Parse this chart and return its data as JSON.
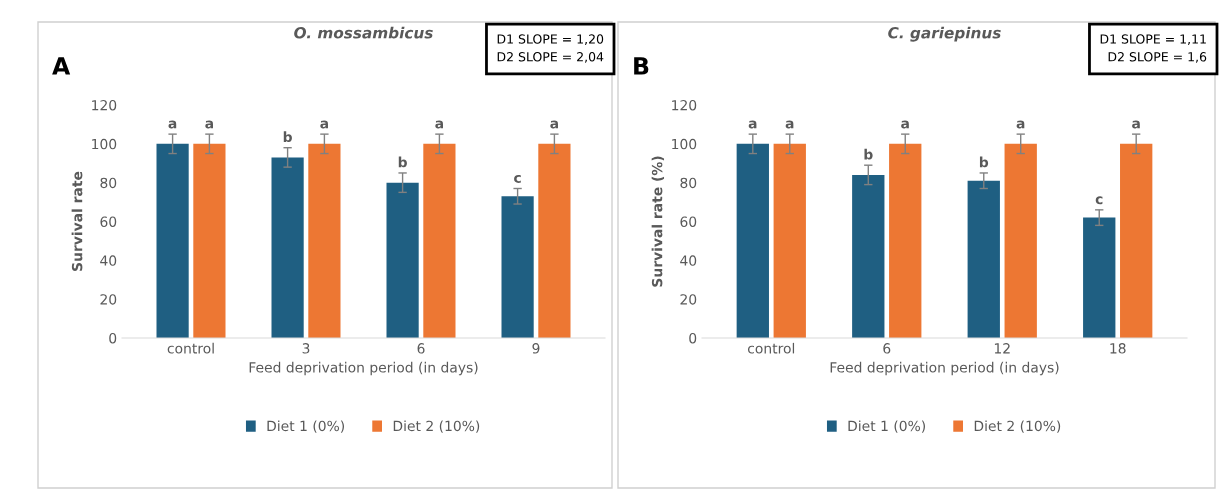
{
  "chart_data": [
    {
      "type": "bar",
      "title": "O. mossambicus",
      "xlabel": "Feed deprivation period (in days)",
      "ylabel": "Survival rate",
      "categories": [
        "control",
        "3",
        "6",
        "9"
      ],
      "ylim": [
        0,
        120
      ],
      "yticks": [
        0,
        20,
        40,
        60,
        80,
        100,
        120
      ],
      "grid": false,
      "legend": "bottom",
      "series": [
        {
          "name": "Diet 1 (0%)",
          "color": "#1f5f82",
          "values": [
            100,
            93,
            80,
            73
          ],
          "errors": [
            5,
            5,
            5,
            4
          ],
          "value_labels": [
            "a",
            "b",
            "b",
            "c"
          ]
        },
        {
          "name": "Diet 2 (10%)",
          "color": "#ed7733",
          "values": [
            100,
            100,
            100,
            100
          ],
          "errors": [
            5,
            5,
            5,
            5
          ],
          "value_labels": [
            "a",
            "a",
            "a",
            "a"
          ]
        }
      ],
      "annotations": [
        "A",
        "D1 SLOPE = 1,20\nD2 SLOPE = 2,04"
      ]
    },
    {
      "type": "bar",
      "title": "C. gariepinus",
      "xlabel": "Feed deprivation period (in days)",
      "ylabel": "Survival rate (%)",
      "categories": [
        "control",
        "6",
        "12",
        "18"
      ],
      "ylim": [
        0,
        120
      ],
      "yticks": [
        0,
        20,
        40,
        60,
        80,
        100,
        120
      ],
      "grid": false,
      "legend": "bottom",
      "series": [
        {
          "name": "Diet 1 (0%)",
          "color": "#1f5f82",
          "values": [
            100,
            84,
            81,
            62
          ],
          "errors": [
            5,
            5,
            4,
            4
          ],
          "value_labels": [
            "a",
            "b",
            "b",
            "c"
          ]
        },
        {
          "name": "Diet 2 (10%)",
          "color": "#ed7733",
          "values": [
            100,
            100,
            100,
            100
          ],
          "errors": [
            5,
            5,
            5,
            5
          ],
          "value_labels": [
            "a",
            "a",
            "a",
            "a"
          ]
        }
      ],
      "annotations": [
        "B",
        "D1 SLOPE = 1,11\nD2 SLOPE = 1,6"
      ]
    }
  ]
}
